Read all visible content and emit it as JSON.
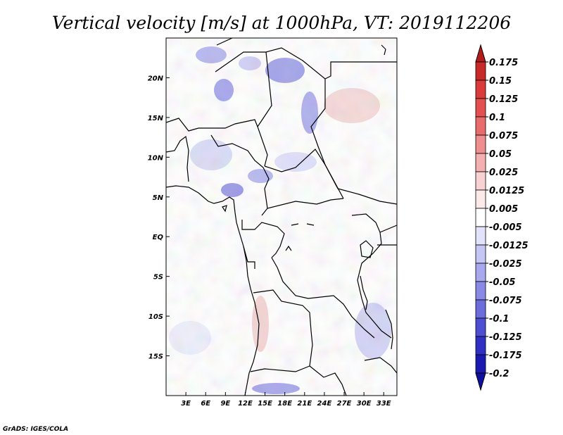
{
  "title": "Vertical velocity [m/s] at 1000hPa, VT: 2019112206",
  "credit": "GrADS: IGES/COLA",
  "map": {
    "lon_range": [
      0,
      35
    ],
    "lat_range": [
      -20,
      25
    ],
    "x_ticks": [
      {
        "lon": 3,
        "label": "3E"
      },
      {
        "lon": 6,
        "label": "6E"
      },
      {
        "lon": 9,
        "label": "9E"
      },
      {
        "lon": 12,
        "label": "12E"
      },
      {
        "lon": 15,
        "label": "15E"
      },
      {
        "lon": 18,
        "label": "18E"
      },
      {
        "lon": 21,
        "label": "21E"
      },
      {
        "lon": 24,
        "label": "24E"
      },
      {
        "lon": 27,
        "label": "27E"
      },
      {
        "lon": 30,
        "label": "30E"
      },
      {
        "lon": 33,
        "label": "33E"
      }
    ],
    "y_ticks": [
      {
        "lat": 20,
        "label": "20N"
      },
      {
        "lat": 15,
        "label": "15N"
      },
      {
        "lat": 10,
        "label": "10N"
      },
      {
        "lat": 5,
        "label": "5N"
      },
      {
        "lat": 0,
        "label": "EQ"
      },
      {
        "lat": -5,
        "label": "5S"
      },
      {
        "lat": -10,
        "label": "10S"
      },
      {
        "lat": -15,
        "label": "15S"
      }
    ]
  },
  "colorbar": {
    "orientation": "vertical",
    "placement": "right",
    "levels": [
      "0.175",
      "0.15",
      "0.125",
      "0.1",
      "0.075",
      "0.05",
      "0.025",
      "0.0125",
      "0.005",
      "-0.005",
      "-0.0125",
      "-0.025",
      "-0.05",
      "-0.075",
      "-0.1",
      "-0.125",
      "-0.175",
      "-0.2"
    ],
    "colors": [
      "#b21c1c",
      "#c82a2a",
      "#da3c3c",
      "#e45050",
      "#e86c6c",
      "#ee8e8e",
      "#f4b0b0",
      "#f8d2d2",
      "#fceaea",
      "#ffffff",
      "#e2e2fa",
      "#c6c6f4",
      "#a8a8ee",
      "#8a8ae6",
      "#6c6cdc",
      "#4e4ed2",
      "#3030c4",
      "#1a1ab0",
      "#1010a0"
    ]
  }
}
